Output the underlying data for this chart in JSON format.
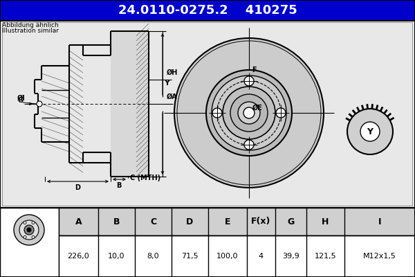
{
  "title_part": "24.0110-0275.2",
  "title_code": "410275",
  "subtitle1": "Abbildung ähnlich",
  "subtitle2": "Illustration similar",
  "table_headers": [
    "A",
    "B",
    "C",
    "D",
    "E",
    "F(x)",
    "G",
    "H",
    "I"
  ],
  "table_values": [
    "226,0",
    "10,0",
    "8,0",
    "71,5",
    "100,0",
    "4",
    "39,9",
    "121,5",
    "M12x1,5"
  ],
  "title_bg": "#0000cc",
  "title_fg": "#ffffff",
  "bg_color": "#ffffff",
  "draw_area_bg": "#e8e8e8",
  "table_header_bg": "#d0d0d0",
  "table_val_bg": "#ffffff"
}
